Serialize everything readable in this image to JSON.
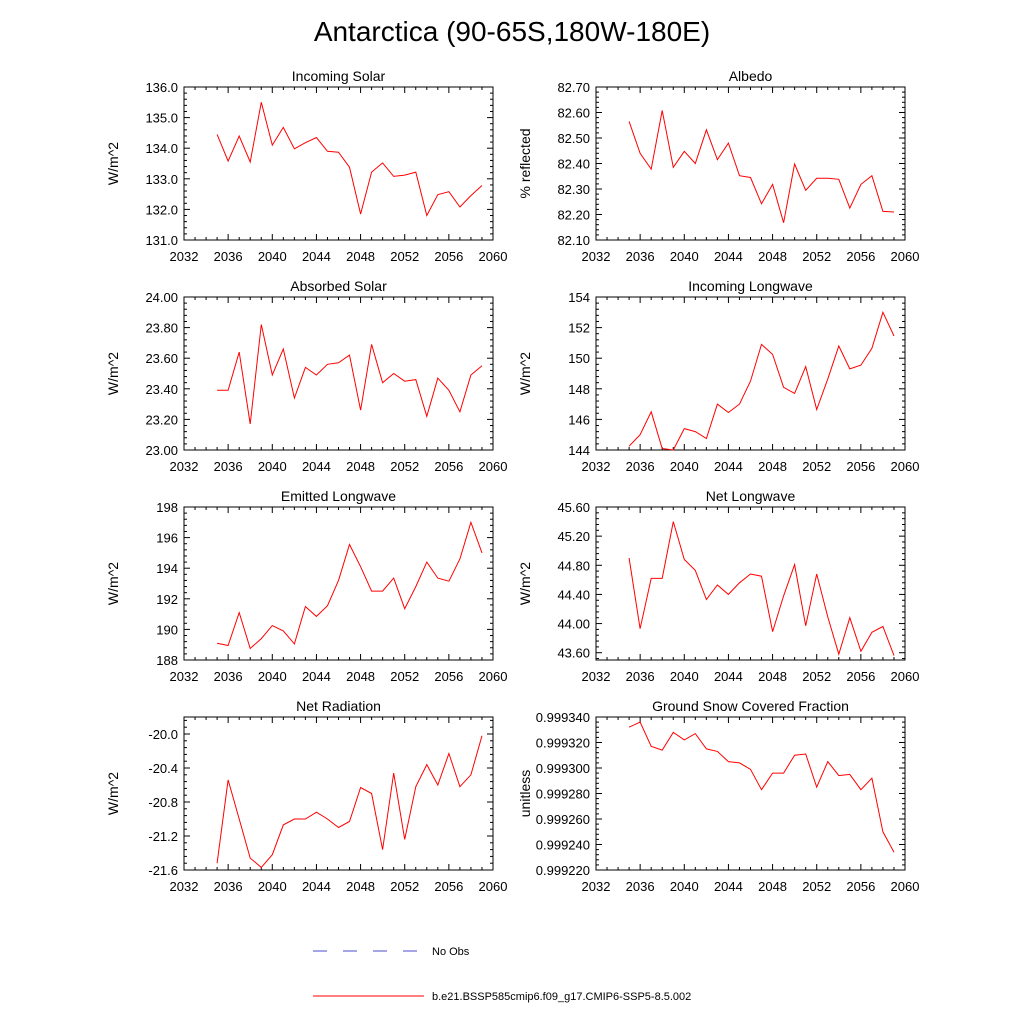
{
  "figure": {
    "title": "Antarctica (90-65S,180W-180E)"
  },
  "legend": {
    "entries": [
      {
        "label": "No Obs",
        "color": "#4d4dcc",
        "style": "dashed"
      },
      {
        "label": "b.e21.BSSP585cmip6.f09_g17.CMIP6-SSP5-8.5.002",
        "color": "#ff0000",
        "style": "solid"
      }
    ]
  },
  "chart_data": [
    {
      "type": "line",
      "title": "Incoming Solar",
      "ylabel": "W/m^2",
      "xlim": [
        2032,
        2060
      ],
      "ylim": [
        131.0,
        136.0
      ],
      "xticks": [
        "2032",
        "2036",
        "2040",
        "2044",
        "2048",
        "2052",
        "2056",
        "2060"
      ],
      "yticks": [
        "131.0",
        "132.0",
        "133.0",
        "134.0",
        "135.0",
        "136.0"
      ],
      "series": [
        {
          "color": "#ff0000",
          "x": [
            2035,
            2036,
            2037,
            2038,
            2039,
            2040,
            2041,
            2042,
            2043,
            2044,
            2045,
            2046,
            2047,
            2048,
            2049,
            2050,
            2051,
            2052,
            2053,
            2054,
            2055,
            2056,
            2057,
            2058,
            2059
          ],
          "y": [
            134.45,
            133.58,
            134.4,
            133.55,
            135.5,
            134.1,
            134.68,
            133.98,
            134.18,
            134.35,
            133.9,
            133.87,
            133.38,
            131.85,
            133.22,
            133.52,
            133.08,
            133.12,
            133.22,
            131.8,
            132.48,
            132.58,
            132.08,
            132.45,
            132.78
          ]
        }
      ]
    },
    {
      "type": "line",
      "title": "Albedo",
      "ylabel": "% reflected",
      "xlim": [
        2032,
        2060
      ],
      "ylim": [
        82.1,
        82.7
      ],
      "xticks": [
        "2032",
        "2036",
        "2040",
        "2044",
        "2048",
        "2052",
        "2056",
        "2060"
      ],
      "yticks": [
        "82.10",
        "82.20",
        "82.30",
        "82.40",
        "82.50",
        "82.60",
        "82.70"
      ],
      "series": [
        {
          "color": "#ff0000",
          "x": [
            2035,
            2036,
            2037,
            2038,
            2039,
            2040,
            2041,
            2042,
            2043,
            2044,
            2045,
            2046,
            2047,
            2048,
            2049,
            2050,
            2051,
            2052,
            2053,
            2054,
            2055,
            2056,
            2057,
            2058,
            2059
          ],
          "y": [
            82.565,
            82.44,
            82.378,
            82.608,
            82.385,
            82.448,
            82.4,
            82.532,
            82.415,
            82.48,
            82.352,
            82.345,
            82.242,
            82.318,
            82.168,
            82.398,
            82.295,
            82.342,
            82.342,
            82.338,
            82.225,
            82.318,
            82.352,
            82.212,
            82.21
          ]
        }
      ]
    },
    {
      "type": "line",
      "title": "Absorbed Solar",
      "ylabel": "W/m^2",
      "xlim": [
        2032,
        2060
      ],
      "ylim": [
        23.0,
        24.0
      ],
      "xticks": [
        "2032",
        "2036",
        "2040",
        "2044",
        "2048",
        "2052",
        "2056",
        "2060"
      ],
      "yticks": [
        "23.00",
        "23.20",
        "23.40",
        "23.60",
        "23.80",
        "24.00"
      ],
      "series": [
        {
          "color": "#ff0000",
          "x": [
            2035,
            2036,
            2037,
            2038,
            2039,
            2040,
            2041,
            2042,
            2043,
            2044,
            2045,
            2046,
            2047,
            2048,
            2049,
            2050,
            2051,
            2052,
            2053,
            2054,
            2055,
            2056,
            2057,
            2058,
            2059
          ],
          "y": [
            23.39,
            23.39,
            23.64,
            23.17,
            23.82,
            23.49,
            23.66,
            23.34,
            23.54,
            23.49,
            23.56,
            23.57,
            23.62,
            23.26,
            23.69,
            23.44,
            23.5,
            23.45,
            23.46,
            23.22,
            23.47,
            23.39,
            23.25,
            23.49,
            23.55
          ]
        }
      ]
    },
    {
      "type": "line",
      "title": "Incoming Longwave",
      "ylabel": "W/m^2",
      "xlim": [
        2032,
        2060
      ],
      "ylim": [
        144,
        154
      ],
      "xticks": [
        "2032",
        "2036",
        "2040",
        "2044",
        "2048",
        "2052",
        "2056",
        "2060"
      ],
      "yticks": [
        "144",
        "146",
        "148",
        "150",
        "152",
        "154"
      ],
      "series": [
        {
          "color": "#ff0000",
          "x": [
            2035,
            2036,
            2037,
            2038,
            2039,
            2040,
            2041,
            2042,
            2043,
            2044,
            2045,
            2046,
            2047,
            2048,
            2049,
            2050,
            2051,
            2052,
            2053,
            2054,
            2055,
            2056,
            2057,
            2058,
            2059
          ],
          "y": [
            144.25,
            145.0,
            146.5,
            144.1,
            144.0,
            145.4,
            145.2,
            144.75,
            147.0,
            146.45,
            147.0,
            148.5,
            150.9,
            150.25,
            148.1,
            147.7,
            149.45,
            146.65,
            148.65,
            150.8,
            149.3,
            149.55,
            150.65,
            153.0,
            151.45
          ]
        }
      ]
    },
    {
      "type": "line",
      "title": "Emitted Longwave",
      "ylabel": "W/m^2",
      "xlim": [
        2032,
        2060
      ],
      "ylim": [
        188,
        198
      ],
      "xticks": [
        "2032",
        "2036",
        "2040",
        "2044",
        "2048",
        "2052",
        "2056",
        "2060"
      ],
      "yticks": [
        "188",
        "190",
        "192",
        "194",
        "196",
        "198"
      ],
      "series": [
        {
          "color": "#ff0000",
          "x": [
            2035,
            2036,
            2037,
            2038,
            2039,
            2040,
            2041,
            2042,
            2043,
            2044,
            2045,
            2046,
            2047,
            2048,
            2049,
            2050,
            2051,
            2052,
            2053,
            2054,
            2055,
            2056,
            2057,
            2058,
            2059
          ],
          "y": [
            189.1,
            188.95,
            191.1,
            188.75,
            189.4,
            190.25,
            189.9,
            189.05,
            191.5,
            190.85,
            191.55,
            193.2,
            195.55,
            194.1,
            192.5,
            192.5,
            193.35,
            191.35,
            192.8,
            194.4,
            193.35,
            193.15,
            194.6,
            197.0,
            195.0
          ]
        }
      ]
    },
    {
      "type": "line",
      "title": "Net Longwave",
      "ylabel": "W/m^2",
      "xlim": [
        2032,
        2060
      ],
      "ylim": [
        43.5,
        45.6
      ],
      "xticks": [
        "2032",
        "2036",
        "2040",
        "2044",
        "2048",
        "2052",
        "2056",
        "2060"
      ],
      "yticks": [
        "43.60",
        "44.00",
        "44.40",
        "44.80",
        "45.20",
        "45.60"
      ],
      "series": [
        {
          "color": "#ff0000",
          "x": [
            2035,
            2036,
            2037,
            2038,
            2039,
            2040,
            2041,
            2042,
            2043,
            2044,
            2045,
            2046,
            2047,
            2048,
            2049,
            2050,
            2051,
            2052,
            2053,
            2054,
            2055,
            2056,
            2057,
            2058,
            2059
          ],
          "y": [
            44.9,
            43.93,
            44.62,
            44.62,
            45.4,
            44.88,
            44.73,
            44.33,
            44.53,
            44.4,
            44.56,
            44.68,
            44.65,
            43.89,
            44.38,
            44.81,
            43.97,
            44.68,
            44.09,
            43.58,
            44.08,
            43.62,
            43.88,
            43.96,
            43.56
          ]
        }
      ]
    },
    {
      "type": "line",
      "title": "Net Radiation",
      "ylabel": "W/m^2",
      "xlim": [
        2032,
        2060
      ],
      "ylim": [
        -21.6,
        -19.8
      ],
      "xticks": [
        "2032",
        "2036",
        "2040",
        "2044",
        "2048",
        "2052",
        "2056",
        "2060"
      ],
      "yticks": [
        "-21.6",
        "-21.2",
        "-20.8",
        "-20.4",
        "-20.0"
      ],
      "series": [
        {
          "color": "#ff0000",
          "x": [
            2035,
            2036,
            2037,
            2038,
            2039,
            2040,
            2041,
            2042,
            2043,
            2044,
            2045,
            2046,
            2047,
            2048,
            2049,
            2050,
            2051,
            2052,
            2053,
            2054,
            2055,
            2056,
            2057,
            2058,
            2059
          ],
          "y": [
            -21.52,
            -20.54,
            -21.0,
            -21.46,
            -21.57,
            -21.42,
            -21.07,
            -21.0,
            -21.0,
            -20.92,
            -21.0,
            -21.1,
            -21.03,
            -20.63,
            -20.7,
            -21.36,
            -20.46,
            -21.24,
            -20.62,
            -20.36,
            -20.6,
            -20.23,
            -20.62,
            -20.48,
            -20.02
          ]
        }
      ]
    },
    {
      "type": "line",
      "title": "Ground Snow Covered Fraction",
      "ylabel": "unitless",
      "xlim": [
        2032,
        2060
      ],
      "ylim": [
        0.99922,
        0.99934
      ],
      "xticks": [
        "2032",
        "2036",
        "2040",
        "2044",
        "2048",
        "2052",
        "2056",
        "2060"
      ],
      "yticks": [
        "0.999220",
        "0.999240",
        "0.999260",
        "0.999280",
        "0.999300",
        "0.999320",
        "0.999340"
      ],
      "series": [
        {
          "color": "#ff0000",
          "x": [
            2035,
            2036,
            2037,
            2038,
            2039,
            2040,
            2041,
            2042,
            2043,
            2044,
            2045,
            2046,
            2047,
            2048,
            2049,
            2050,
            2051,
            2052,
            2053,
            2054,
            2055,
            2056,
            2057,
            2058,
            2059
          ],
          "y": [
            0.999332,
            0.999336,
            0.999317,
            0.999314,
            0.999328,
            0.999322,
            0.999327,
            0.999315,
            0.999313,
            0.999305,
            0.999304,
            0.999299,
            0.999283,
            0.999296,
            0.999296,
            0.99931,
            0.999311,
            0.999285,
            0.999305,
            0.999294,
            0.999295,
            0.999283,
            0.999292,
            0.99925,
            0.999234
          ]
        }
      ]
    }
  ]
}
